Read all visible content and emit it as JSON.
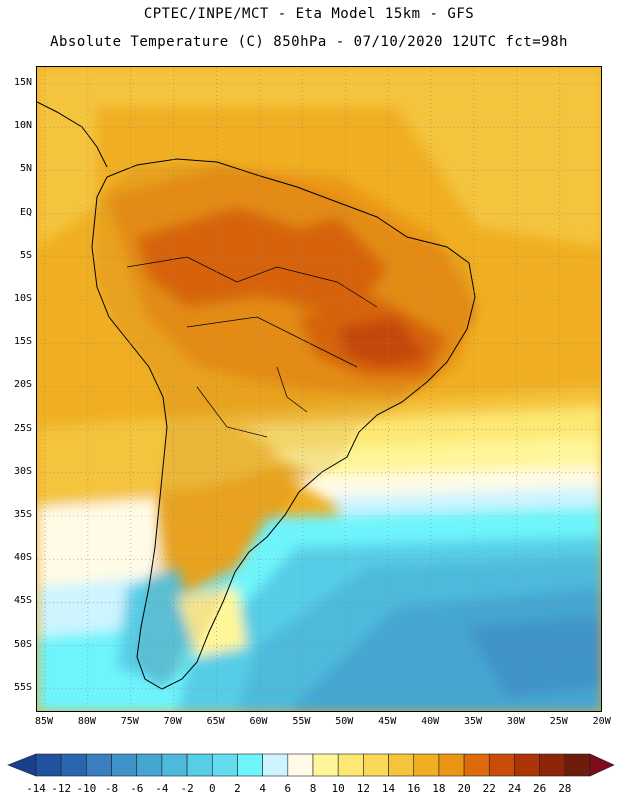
{
  "header": {
    "title_line1": "CPTEC/INPE/MCT -  Eta Model 15km - GFS",
    "title_line2": "Absolute Temperature (C) 850hPa - 07/10/2020 12UTC fct=98h"
  },
  "map": {
    "latitude_labels": [
      "15N",
      "10N",
      "5N",
      "EQ",
      "5S",
      "10S",
      "15S",
      "20S",
      "25S",
      "30S",
      "35S",
      "40S",
      "45S",
      "50S",
      "55S"
    ],
    "longitude_labels": [
      "85W",
      "80W",
      "75W",
      "70W",
      "65W",
      "60W",
      "55W",
      "50W",
      "45W",
      "40W",
      "35W",
      "30W",
      "25W",
      "20W"
    ],
    "lat_range": [
      16.5,
      -58
    ],
    "lon_range": [
      -85.5,
      -19.5
    ]
  },
  "colorbar": {
    "labels": [
      "-14",
      "-12",
      "-10",
      "-8",
      "-6",
      "-4",
      "-2",
      "0",
      "2",
      "4",
      "6",
      "8",
      "10",
      "12",
      "14",
      "16",
      "18",
      "20",
      "22",
      "24",
      "26",
      "28"
    ],
    "colors": [
      "#1a3f8f",
      "#2152a0",
      "#2a66b0",
      "#3a7fbf",
      "#3f93c8",
      "#45a6d2",
      "#4dbadc",
      "#57cde6",
      "#62dcee",
      "#6ef4fb",
      "#cdf4ff",
      "#fffbe6",
      "#fff69a",
      "#fde873",
      "#f9d85a",
      "#f4c43d",
      "#f0af22",
      "#eb9514",
      "#dd6a0c",
      "#c94c09",
      "#ae3408",
      "#8e250a",
      "#6e1c0c",
      "#7e0b1e"
    ]
  }
}
